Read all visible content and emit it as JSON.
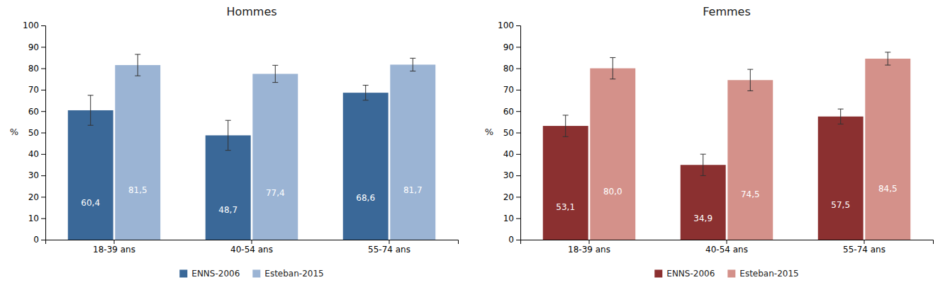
{
  "chart_data": [
    {
      "type": "bar",
      "title": "Hommes",
      "ylabel": "%",
      "categories": [
        "18-39 ans",
        "40-54 ans",
        "55-74 ans"
      ],
      "series": [
        {
          "name": "ENNS-2006",
          "color": "#3A6898",
          "values": [
            60.4,
            48.7,
            68.6
          ],
          "value_labels": [
            "60,4",
            "48,7",
            "68,6"
          ],
          "errors": [
            7,
            7,
            3.5
          ]
        },
        {
          "name": "Esteban-2015",
          "color": "#9BB4D4",
          "values": [
            81.5,
            77.4,
            81.7
          ],
          "value_labels": [
            "81,5",
            "77,4",
            "81,7"
          ],
          "errors": [
            5,
            4,
            3
          ]
        }
      ],
      "ylim": [
        0,
        100
      ],
      "yticks": [
        0,
        10,
        20,
        30,
        40,
        50,
        60,
        70,
        80,
        90,
        100
      ],
      "grid": false,
      "legend": "bottom",
      "data_labels": true
    },
    {
      "type": "bar",
      "title": "Femmes",
      "ylabel": "%",
      "categories": [
        "18-39 ans",
        "40-54 ans",
        "55-74 ans"
      ],
      "series": [
        {
          "name": "ENNS-2006",
          "color": "#8B3030",
          "values": [
            53.1,
            34.9,
            57.5
          ],
          "value_labels": [
            "53,1",
            "34,9",
            "57,5"
          ],
          "errors": [
            5,
            5,
            3.5
          ]
        },
        {
          "name": "Esteban-2015",
          "color": "#D4918A",
          "values": [
            80.0,
            74.5,
            84.5
          ],
          "value_labels": [
            "80,0",
            "74,5",
            "84,5"
          ],
          "errors": [
            5,
            5,
            3
          ]
        }
      ],
      "ylim": [
        0,
        100
      ],
      "yticks": [
        0,
        10,
        20,
        30,
        40,
        50,
        60,
        70,
        80,
        90,
        100
      ],
      "grid": false,
      "legend": "bottom",
      "data_labels": true
    }
  ]
}
